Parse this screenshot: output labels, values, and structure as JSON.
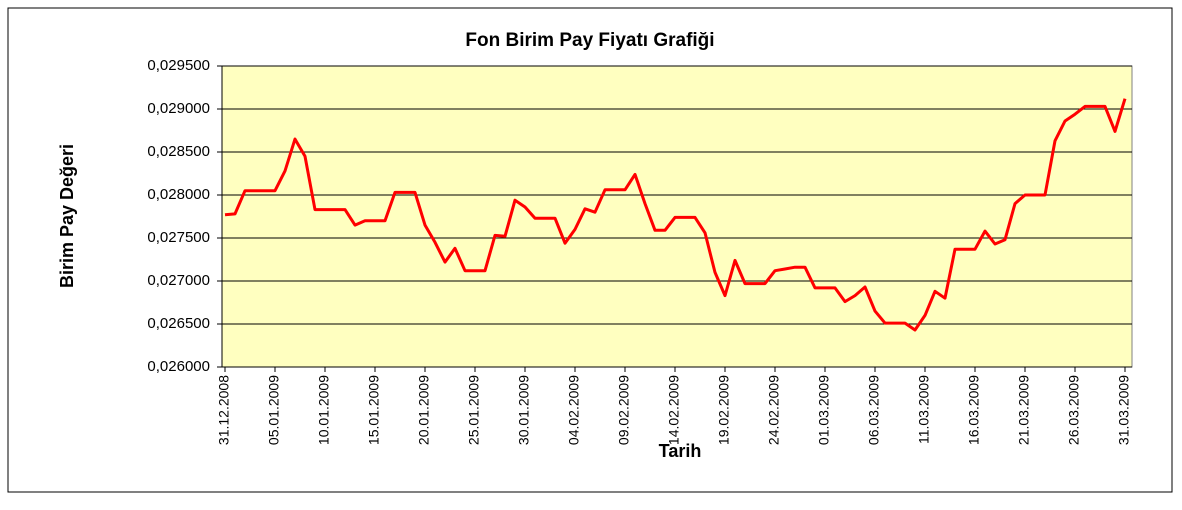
{
  "chart_data": {
    "type": "line",
    "title": "Fon Birim Pay Fiyatı Grafiği",
    "x_label": "Tarih",
    "y_label": "Birim Pay Değeri",
    "categories": [
      "31.12.2008",
      null,
      null,
      null,
      null,
      "05.01.2009",
      null,
      null,
      null,
      null,
      "10.01.2009",
      null,
      null,
      null,
      null,
      "15.01.2009",
      null,
      null,
      null,
      null,
      "20.01.2009",
      null,
      null,
      null,
      null,
      "25.01.2009",
      null,
      null,
      null,
      null,
      "30.01.2009",
      null,
      null,
      null,
      null,
      "04.02.2009",
      null,
      null,
      null,
      null,
      "09.02.2009",
      null,
      null,
      null,
      null,
      "14.02.2009",
      null,
      null,
      null,
      null,
      "19.02.2009",
      null,
      null,
      null,
      null,
      "24.02.2009",
      null,
      null,
      null,
      null,
      "01.03.2009",
      null,
      null,
      null,
      null,
      "06.03.2009",
      null,
      null,
      null,
      null,
      "11.03.2009",
      null,
      null,
      null,
      null,
      "16.03.2009",
      null,
      null,
      null,
      null,
      "21.03.2009",
      null,
      null,
      null,
      null,
      "26.03.2009",
      null,
      null,
      null,
      null,
      "31.03.2009"
    ],
    "values": [
      0.02777,
      0.02778,
      0.02805,
      0.02805,
      0.02805,
      0.02805,
      0.02828,
      0.02865,
      0.02845,
      0.02783,
      0.02783,
      0.02783,
      0.02783,
      0.02765,
      0.0277,
      0.0277,
      0.0277,
      0.02803,
      0.02803,
      0.02803,
      0.02765,
      0.02745,
      0.02722,
      0.02738,
      0.02712,
      0.02712,
      0.02712,
      0.02753,
      0.02752,
      0.02794,
      0.02786,
      0.02773,
      0.02773,
      0.02773,
      0.02744,
      0.0276,
      0.02784,
      0.0278,
      0.02806,
      0.02806,
      0.02806,
      0.02824,
      0.0279,
      0.02759,
      0.02759,
      0.02774,
      0.02774,
      0.02774,
      0.02756,
      0.0271,
      0.02683,
      0.02724,
      0.02697,
      0.02697,
      0.02697,
      0.02712,
      0.02714,
      0.02716,
      0.02716,
      0.02692,
      0.02692,
      0.02692,
      0.02676,
      0.02683,
      0.02693,
      0.02665,
      0.02651,
      0.02651,
      0.02651,
      0.02643,
      0.0266,
      0.02688,
      0.0268,
      0.02737,
      0.02737,
      0.02737,
      0.02758,
      0.02743,
      0.02748,
      0.0279,
      0.028,
      0.028,
      0.028,
      0.02863,
      0.02886,
      0.02894,
      0.02903,
      0.02903,
      0.02903,
      0.02874,
      0.02912
    ],
    "color": "#ff0000",
    "ylim": [
      0.026,
      0.0295
    ],
    "yticks": [
      {
        "value": 0.026,
        "label": "0,026000"
      },
      {
        "value": 0.0265,
        "label": "0,026500"
      },
      {
        "value": 0.027,
        "label": "0,027000"
      },
      {
        "value": 0.0275,
        "label": "0,027500"
      },
      {
        "value": 0.028,
        "label": "0,028000"
      },
      {
        "value": 0.0285,
        "label": "0,028500"
      },
      {
        "value": 0.029,
        "label": "0,029000"
      },
      {
        "value": 0.0295,
        "label": "0,029500"
      }
    ],
    "grid": true
  }
}
